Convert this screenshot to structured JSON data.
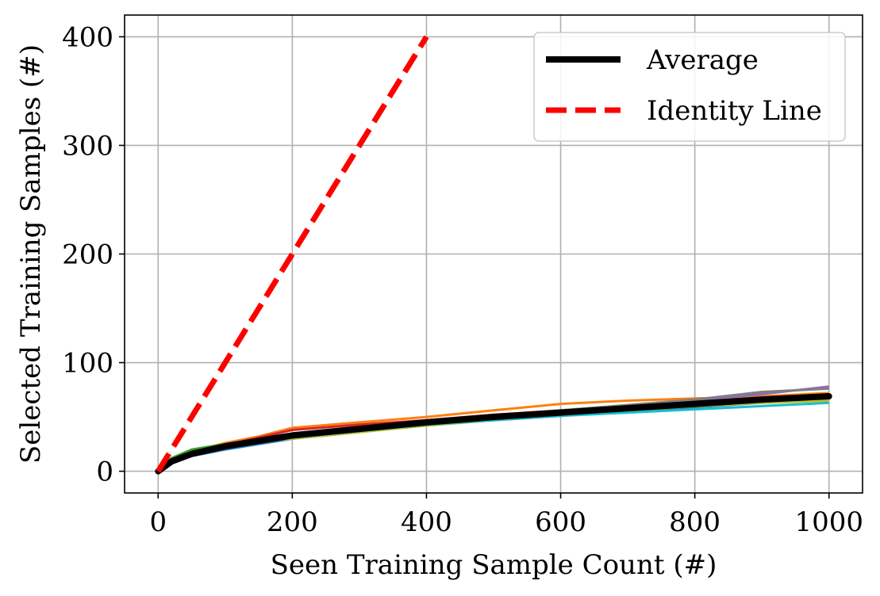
{
  "chart_data": {
    "type": "line",
    "xlabel": "Seen Training Sample Count (#)",
    "ylabel": "Selected Training Samples (#)",
    "xlim": [
      -50,
      1050
    ],
    "ylim": [
      -20,
      420
    ],
    "xticks": [
      0,
      200,
      400,
      600,
      800,
      1000
    ],
    "yticks": [
      0,
      100,
      200,
      300,
      400
    ],
    "grid": true,
    "legend_position": "top-right",
    "legend": [
      {
        "label": "Average",
        "color": "#000000",
        "style": "solid"
      },
      {
        "label": "Identity Line",
        "color": "#ff0000",
        "style": "dashed"
      }
    ],
    "series": [
      {
        "name": "Average",
        "color": "#000000",
        "style": "solid",
        "x": [
          0,
          20,
          50,
          100,
          150,
          200,
          300,
          400,
          500,
          600,
          700,
          800,
          900,
          1000
        ],
        "y": [
          0,
          9,
          16,
          23,
          28,
          33,
          39,
          45,
          50,
          54,
          58,
          62,
          66,
          69
        ]
      },
      {
        "name": "Identity Line",
        "color": "#ff0000",
        "style": "dashed",
        "x": [
          0,
          400
        ],
        "y": [
          0,
          400
        ]
      }
    ],
    "runs": [
      {
        "color": "#1f77b4",
        "x": [
          0,
          20,
          50,
          100,
          150,
          200,
          300,
          400,
          500,
          600,
          700,
          800,
          900,
          1000
        ],
        "y": [
          0,
          8,
          14,
          20,
          25,
          30,
          36,
          43,
          47,
          51,
          55,
          59,
          63,
          66
        ]
      },
      {
        "color": "#ff7f0e",
        "x": [
          0,
          20,
          50,
          100,
          150,
          200,
          300,
          400,
          500,
          600,
          700,
          800,
          900,
          1000
        ],
        "y": [
          0,
          11,
          18,
          26,
          32,
          40,
          45,
          50,
          56,
          62,
          65,
          67,
          69,
          72
        ]
      },
      {
        "color": "#2ca02c",
        "x": [
          0,
          20,
          50,
          100,
          150,
          200,
          300,
          400,
          500,
          600,
          700,
          800,
          900,
          1000
        ],
        "y": [
          0,
          12,
          20,
          25,
          29,
          34,
          39,
          44,
          49,
          52,
          56,
          60,
          64,
          67
        ]
      },
      {
        "color": "#d62728",
        "x": [
          0,
          20,
          50,
          100,
          150,
          200,
          300,
          400,
          500,
          600,
          700,
          800,
          900,
          1000
        ],
        "y": [
          0,
          10,
          17,
          24,
          31,
          38,
          43,
          47,
          52,
          56,
          59,
          63,
          66,
          69
        ]
      },
      {
        "color": "#9467bd",
        "x": [
          0,
          20,
          50,
          100,
          150,
          200,
          300,
          400,
          500,
          600,
          700,
          800,
          900,
          1000
        ],
        "y": [
          0,
          9,
          15,
          22,
          27,
          32,
          38,
          45,
          50,
          55,
          59,
          65,
          71,
          78
        ]
      },
      {
        "color": "#8c564b",
        "x": [
          0,
          20,
          50,
          100,
          150,
          200,
          300,
          400,
          500,
          600,
          700,
          800,
          900,
          1000
        ],
        "y": [
          0,
          8,
          15,
          22,
          27,
          31,
          37,
          44,
          49,
          53,
          57,
          61,
          65,
          68
        ]
      },
      {
        "color": "#e377c2",
        "x": [
          0,
          20,
          50,
          100,
          150,
          200,
          300,
          400,
          500,
          600,
          700,
          800,
          900,
          1000
        ],
        "y": [
          0,
          9,
          16,
          23,
          28,
          33,
          40,
          46,
          50,
          55,
          59,
          63,
          67,
          70
        ]
      },
      {
        "color": "#7f7f7f",
        "x": [
          0,
          20,
          50,
          100,
          150,
          200,
          300,
          400,
          500,
          600,
          700,
          800,
          900,
          1000
        ],
        "y": [
          0,
          10,
          17,
          24,
          29,
          34,
          40,
          46,
          51,
          56,
          61,
          66,
          73,
          76
        ]
      },
      {
        "color": "#bcbd22",
        "x": [
          0,
          20,
          50,
          100,
          150,
          200,
          300,
          400,
          500,
          600,
          700,
          800,
          900,
          1000
        ],
        "y": [
          0,
          11,
          18,
          25,
          28,
          30,
          36,
          42,
          47,
          52,
          56,
          60,
          63,
          65
        ]
      },
      {
        "color": "#17becf",
        "x": [
          0,
          20,
          50,
          100,
          150,
          200,
          300,
          400,
          500,
          600,
          700,
          800,
          900,
          1000
        ],
        "y": [
          0,
          9,
          16,
          22,
          27,
          31,
          37,
          43,
          47,
          51,
          54,
          57,
          60,
          63
        ]
      }
    ]
  }
}
